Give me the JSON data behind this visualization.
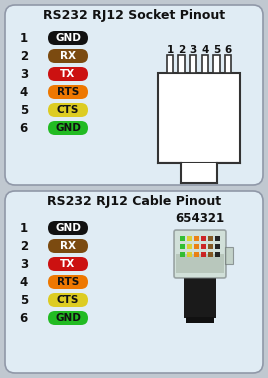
{
  "bg_color": "#c0c8d0",
  "panel_bg": "#e0ecf4",
  "title1": "RS232 RJ12 Socket Pinout",
  "title2": "RS232 RJ12 Cable Pinout",
  "pins": [
    {
      "num": 1,
      "label": "GND",
      "color": "#111111",
      "text_color": "#ffffff"
    },
    {
      "num": 2,
      "label": "RX",
      "color": "#7b4a10",
      "text_color": "#ffffff"
    },
    {
      "num": 3,
      "label": "TX",
      "color": "#cc1111",
      "text_color": "#ffffff"
    },
    {
      "num": 4,
      "label": "RTS",
      "color": "#ee7700",
      "text_color": "#111111"
    },
    {
      "num": 5,
      "label": "CTS",
      "color": "#ddcc22",
      "text_color": "#111111"
    },
    {
      "num": 6,
      "label": "GND",
      "color": "#22bb22",
      "text_color": "#111111"
    }
  ],
  "socket_label": "1 2 3 4 5 6",
  "cable_label": "654321",
  "wire_colors": [
    "#22bb22",
    "#ddcc22",
    "#ee7700",
    "#cc1111",
    "#7b4a10",
    "#111111"
  ]
}
